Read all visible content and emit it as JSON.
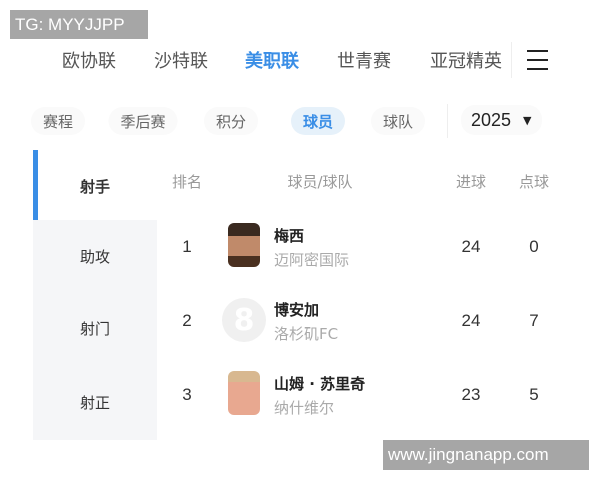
{
  "watermarks": {
    "top": "TG: MYYJJPP",
    "bottom": "www.jingnanapp.com"
  },
  "top_nav": {
    "items": [
      "欧协联",
      "沙特联",
      "美职联",
      "世青赛",
      "亚冠精英"
    ],
    "active": "美职联",
    "menu_icon": "hamburger-icon"
  },
  "sub_tabs": {
    "items": [
      "赛程",
      "季后赛",
      "积分",
      "球员",
      "球队"
    ],
    "active": "球员",
    "season": "2025",
    "season_icon": "caret-down-icon"
  },
  "sidebar": {
    "items": [
      "射手",
      "助攻",
      "射门",
      "射正"
    ],
    "active": "射手"
  },
  "table": {
    "headers": {
      "rank": "排名",
      "player_team": "球员/球队",
      "goals": "进球",
      "penalties": "点球"
    },
    "rows": [
      {
        "rank": "1",
        "name": "梅西",
        "team": "迈阿密国际",
        "goals": "24",
        "penalties": "0"
      },
      {
        "rank": "2",
        "name": "博安加",
        "team": "洛杉矶FC",
        "goals": "24",
        "penalties": "7"
      },
      {
        "rank": "3",
        "name": "山姆 · 苏里奇",
        "team": "纳什维尔",
        "goals": "23",
        "penalties": "5"
      }
    ]
  },
  "colors": {
    "accent": "#3a8ee6"
  }
}
